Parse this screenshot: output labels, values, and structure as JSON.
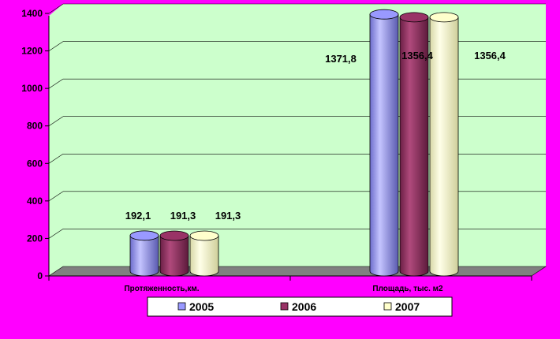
{
  "chart_data": {
    "type": "bar",
    "categories": [
      "Протяженность,км.",
      "Площадь, тыс. м2"
    ],
    "series": [
      {
        "name": "2005",
        "values": [
          192.1,
          1371.8
        ],
        "labels": [
          "192,1",
          "1371,8"
        ],
        "color": "#9999ff"
      },
      {
        "name": "2006",
        "values": [
          191.3,
          1356.4
        ],
        "labels": [
          "191,3",
          "1356,4"
        ],
        "color": "#993366"
      },
      {
        "name": "2007",
        "values": [
          191.3,
          1356.4
        ],
        "labels": [
          "191,3",
          "1356,4"
        ],
        "color": "#ffffcc"
      }
    ],
    "ylim": [
      0,
      1400
    ],
    "yticks": [
      0,
      200,
      400,
      600,
      800,
      1000,
      1200,
      1400
    ],
    "grid": true,
    "legend_position": "bottom",
    "colors": {
      "background": "#ff00ff",
      "plot_wall": "#ccffcc",
      "floor": "#808080"
    }
  }
}
